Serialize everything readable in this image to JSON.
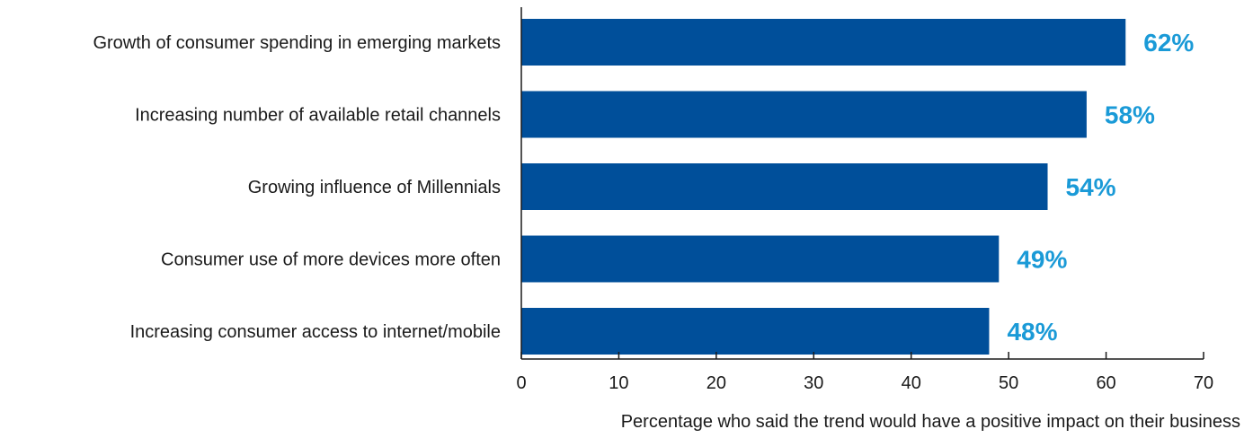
{
  "chart_data": {
    "type": "bar",
    "orientation": "horizontal",
    "categories": [
      "Growth of consumer spending in emerging markets",
      "Increasing number of available retail channels",
      "Growing influence of Millennials",
      "Consumer use of more devices more often",
      "Increasing consumer access to internet/mobile"
    ],
    "values": [
      62,
      58,
      54,
      49,
      48
    ],
    "data_labels": [
      "62%",
      "58%",
      "54%",
      "49%",
      "48%"
    ],
    "title": "",
    "xlabel": "Percentage who said the trend would have a positive impact on their business",
    "ylabel": "",
    "xlim": [
      0,
      70
    ],
    "xticks": [
      0,
      10,
      20,
      30,
      40,
      50,
      60,
      70
    ],
    "grid": false,
    "legend": "none",
    "colors": {
      "bar": "#004f9a",
      "data_label": "#1a9ad7",
      "axis": "#1a1a1a"
    }
  }
}
